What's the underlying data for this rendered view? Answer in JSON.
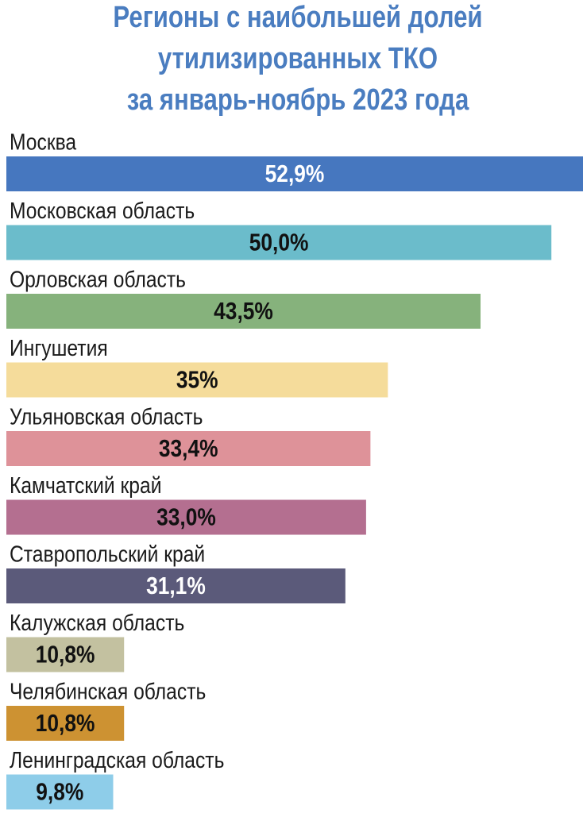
{
  "chart_data": {
    "type": "bar",
    "orientation": "horizontal",
    "title": [
      "Регионы с наибольшей долей",
      "утилизированных ТКО",
      "за январь-ноябрь 2023 года"
    ],
    "categories": [
      "Москва",
      "Московская область",
      "Орловская область",
      "Ингушетия",
      "Ульяновская область",
      "Камчатский край",
      "Ставропольский край",
      "Калужская область",
      "Челябинская область",
      "Ленинградская область"
    ],
    "values": [
      52.9,
      50.0,
      43.5,
      35,
      33.4,
      33.0,
      31.1,
      10.8,
      10.8,
      9.8
    ],
    "value_labels": [
      "52,9%",
      "50,0%",
      "43,5%",
      "35%",
      "33,4%",
      "33,0%",
      "31,1%",
      "10,8%",
      "10,8%",
      "9,8%"
    ],
    "colors": [
      "#4677bf",
      "#6bbccb",
      "#86b27c",
      "#f5dc9b",
      "#de9299",
      "#b46f90",
      "#5b5a7a",
      "#c3c1a0",
      "#cd9232",
      "#8ecde9"
    ],
    "title_color": "#4a7dc0"
  }
}
